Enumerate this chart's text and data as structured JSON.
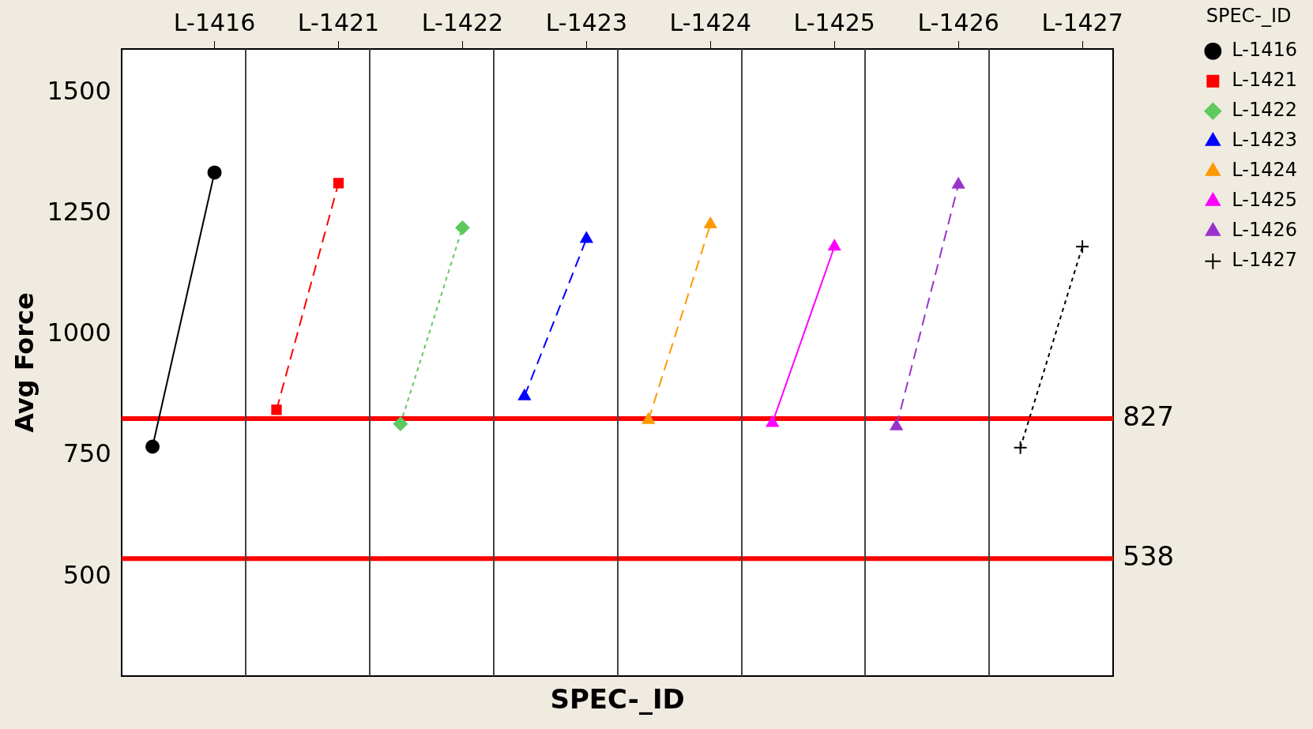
{
  "chart_data": {
    "type": "line",
    "xlabel": "SPEC-_ID",
    "ylabel": "Avg Force",
    "legend_title": "SPEC-_ID",
    "legend": "top right",
    "categories": [
      null,
      "L-1416",
      null,
      "L-1421",
      null,
      "L-1422",
      null,
      "L-1423",
      null,
      "L-1424",
      null,
      "L-1425",
      null,
      "L-1426",
      null,
      "L-1427"
    ],
    "ylim": [
      295,
      1590
    ],
    "yticks": [
      500,
      750,
      1000,
      1250,
      1500
    ],
    "grid": false,
    "series": [
      {
        "name": "L-1416",
        "color": "#000000",
        "marker": "circle",
        "line_style": "solid",
        "values": [
          769,
          1335,
          null,
          null,
          null,
          null,
          null,
          null,
          null,
          null,
          null,
          null,
          null,
          null,
          null,
          null
        ]
      },
      {
        "name": "L-1421",
        "color": "#ff0000",
        "marker": "square",
        "line_style": "dashed",
        "values": [
          null,
          null,
          845,
          1313,
          null,
          null,
          null,
          null,
          null,
          null,
          null,
          null,
          null,
          null,
          null,
          null
        ]
      },
      {
        "name": "L-1422",
        "color": "#5ec95e",
        "marker": "diamond",
        "line_style": "dotted",
        "values": [
          null,
          null,
          null,
          null,
          816,
          1221,
          null,
          null,
          null,
          null,
          null,
          null,
          null,
          null,
          null,
          null
        ]
      },
      {
        "name": "L-1423",
        "color": "#0000ff",
        "marker": "triangle",
        "line_style": "dashed",
        "values": [
          null,
          null,
          null,
          null,
          null,
          null,
          873,
          1198,
          null,
          null,
          null,
          null,
          null,
          null,
          null,
          null
        ]
      },
      {
        "name": "L-1424",
        "color": "#ff9900",
        "marker": "triangle",
        "line_style": "dashed",
        "values": [
          null,
          null,
          null,
          null,
          null,
          null,
          null,
          null,
          824,
          1228,
          null,
          null,
          null,
          null,
          null,
          null
        ]
      },
      {
        "name": "L-1425",
        "color": "#ff00ff",
        "marker": "triangle",
        "line_style": "solid",
        "values": [
          null,
          null,
          null,
          null,
          null,
          null,
          null,
          null,
          null,
          null,
          818,
          1182,
          null,
          null,
          null,
          null
        ]
      },
      {
        "name": "L-1426",
        "color": "#9933cc",
        "marker": "triangle",
        "line_style": "dashed",
        "values": [
          null,
          null,
          null,
          null,
          null,
          null,
          null,
          null,
          null,
          null,
          null,
          null,
          811,
          1310,
          null,
          null
        ]
      },
      {
        "name": "L-1427",
        "color": "#000000",
        "marker": "cross",
        "line_style": "dotted",
        "values": [
          null,
          null,
          null,
          null,
          null,
          null,
          null,
          null,
          null,
          null,
          null,
          null,
          null,
          null,
          767,
          1182
        ]
      }
    ],
    "ref_lines": [
      {
        "axis": "y",
        "value": 827,
        "label": "827",
        "color": "#ff0000"
      },
      {
        "axis": "y",
        "value": 538,
        "label": "538",
        "color": "#ff0000"
      }
    ]
  }
}
